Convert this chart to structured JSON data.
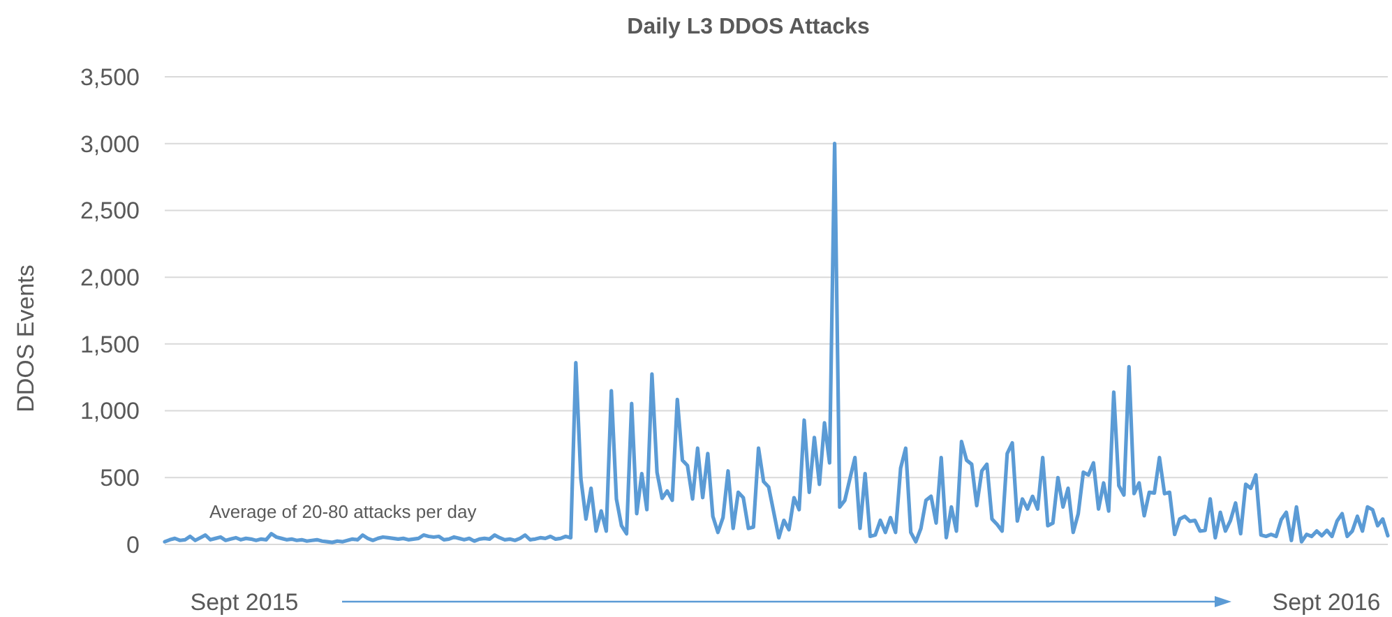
{
  "chart_data": {
    "type": "line",
    "title": "Daily L3 DDOS Attacks",
    "ylabel": "DDOS Events",
    "annotations": [
      "Average of 20-80 attacks per day",
      "Sept 2015",
      "Sept 2016"
    ],
    "categories": [
      null,
      null,
      null,
      null,
      null,
      null,
      null,
      null,
      null,
      null,
      null,
      null,
      null,
      null,
      null,
      null,
      null,
      null,
      null,
      null,
      null,
      null,
      null,
      null,
      null,
      null,
      null,
      null,
      null,
      null,
      null,
      null,
      null,
      null,
      null,
      null,
      null,
      null,
      null,
      null,
      null,
      null,
      null,
      null,
      null,
      null,
      null,
      null,
      null,
      null,
      null,
      null,
      null,
      null,
      null,
      null,
      null,
      null,
      null,
      null,
      null,
      null,
      null,
      null,
      null,
      null,
      null,
      null,
      null,
      null,
      null,
      null,
      null,
      null,
      null,
      null,
      null,
      null,
      null,
      null,
      null,
      null,
      null,
      null,
      null,
      null,
      null,
      null,
      null,
      null,
      null,
      null,
      null,
      null,
      null,
      null,
      null,
      null,
      null,
      null,
      null,
      null,
      null,
      null,
      null,
      null,
      null,
      null,
      null,
      null,
      null,
      null,
      null,
      null,
      null,
      null,
      null,
      null,
      null,
      null,
      null,
      null,
      null,
      null,
      null,
      null,
      null,
      null,
      null,
      null,
      null,
      null,
      null,
      null,
      null,
      null,
      null,
      null,
      null,
      null,
      null,
      null,
      null,
      null,
      null,
      null,
      null,
      null,
      null,
      null,
      null,
      null,
      null,
      null,
      null,
      null,
      null,
      null,
      null,
      null,
      null,
      null,
      null,
      null,
      null,
      null,
      null,
      null,
      null,
      null,
      null,
      null,
      null,
      null,
      null,
      null,
      null,
      null,
      null,
      null,
      null,
      null,
      null,
      null,
      null,
      null,
      null,
      null,
      null,
      null,
      null,
      null,
      null,
      null,
      null,
      null,
      null,
      null,
      null,
      null,
      null,
      null,
      null,
      null,
      null,
      null,
      null,
      null,
      null,
      null,
      null,
      null,
      null,
      null,
      null,
      null,
      null,
      null,
      null,
      null,
      null,
      null,
      null,
      null,
      null,
      null,
      null,
      null,
      null,
      null,
      null,
      null,
      null,
      null,
      null,
      null,
      null,
      null,
      null,
      null,
      null,
      null
    ],
    "series": [
      {
        "color": "#5b9bd5",
        "values": [
          20,
          35,
          45,
          30,
          35,
          60,
          30,
          50,
          70,
          35,
          45,
          55,
          30,
          40,
          50,
          35,
          45,
          40,
          30,
          40,
          35,
          80,
          55,
          45,
          35,
          40,
          30,
          35,
          25,
          30,
          35,
          25,
          20,
          15,
          25,
          20,
          30,
          40,
          35,
          70,
          45,
          30,
          45,
          55,
          50,
          45,
          40,
          45,
          35,
          40,
          45,
          70,
          60,
          55,
          60,
          35,
          40,
          55,
          45,
          35,
          45,
          25,
          40,
          45,
          40,
          70,
          50,
          35,
          40,
          30,
          45,
          70,
          35,
          40,
          50,
          45,
          60,
          40,
          45,
          60,
          50,
          1360,
          490,
          190,
          420,
          100,
          250,
          100,
          1150,
          340,
          140,
          80,
          1055,
          230,
          530,
          260,
          1275,
          540,
          345,
          400,
          330,
          1085,
          630,
          590,
          340,
          720,
          350,
          680,
          210,
          90,
          200,
          550,
          120,
          390,
          350,
          120,
          130,
          720,
          470,
          430,
          240,
          50,
          180,
          110,
          350,
          260,
          930,
          390,
          800,
          450,
          910,
          610,
          3000,
          280,
          330,
          490,
          650,
          120,
          530,
          60,
          70,
          180,
          90,
          200,
          90,
          570,
          720,
          90,
          20,
          120,
          330,
          360,
          160,
          650,
          50,
          280,
          100,
          770,
          630,
          600,
          290,
          550,
          600,
          190,
          150,
          100,
          680,
          760,
          175,
          340,
          265,
          360,
          265,
          650,
          140,
          160,
          500,
          280,
          420,
          90,
          230,
          540,
          520,
          610,
          265,
          460,
          250,
          1140,
          440,
          370,
          1330,
          380,
          460,
          215,
          390,
          385,
          650,
          380,
          390,
          75,
          190,
          210,
          173,
          180,
          100,
          105,
          340,
          50,
          240,
          100,
          180,
          310,
          80,
          450,
          420,
          520,
          70,
          60,
          75,
          60,
          185,
          240,
          30,
          280,
          20,
          75,
          60,
          100,
          65,
          105,
          60,
          175,
          230,
          60,
          100,
          210,
          100,
          280,
          260,
          140,
          190,
          65
        ]
      }
    ],
    "ylim": [
      0,
      3500
    ],
    "yticks": [
      0,
      500,
      {
        "value": 1000,
        "label": "1,000"
      },
      {
        "value": 1500,
        "label": "1,500"
      },
      {
        "value": 2000,
        "label": "2,000"
      },
      {
        "value": 2500,
        "label": "2,500"
      },
      {
        "value": 3000,
        "label": "3,000"
      },
      {
        "value": 3500,
        "label": "3,500"
      }
    ],
    "grid": "y",
    "marker": "none",
    "line_style": "solid"
  }
}
